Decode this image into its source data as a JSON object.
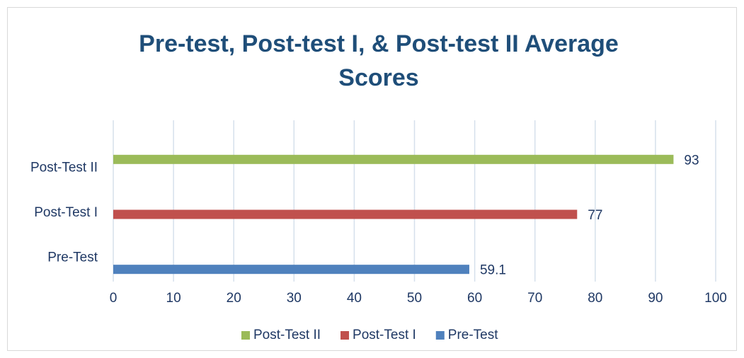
{
  "chart_data": {
    "type": "bar",
    "orientation": "horizontal",
    "title": "Pre-test, Post-test I, & Post-test II Average Scores",
    "categories": [
      "Pre-Test",
      "Post-Test I",
      "Post-Test II"
    ],
    "series": [
      {
        "name": "Post-Test II",
        "color": "#9bbb59",
        "values": [
          null,
          null,
          93
        ]
      },
      {
        "name": "Post-Test I",
        "color": "#c0504d",
        "values": [
          null,
          77,
          null
        ]
      },
      {
        "name": "Pre-Test",
        "color": "#4f81bd",
        "values": [
          59.1,
          null,
          null
        ]
      }
    ],
    "xlim": [
      0,
      100
    ],
    "xticks": [
      0,
      10,
      20,
      30,
      40,
      50,
      60,
      70,
      80,
      90,
      100
    ],
    "grid": true,
    "legend": "bottom",
    "data_labels": true
  }
}
